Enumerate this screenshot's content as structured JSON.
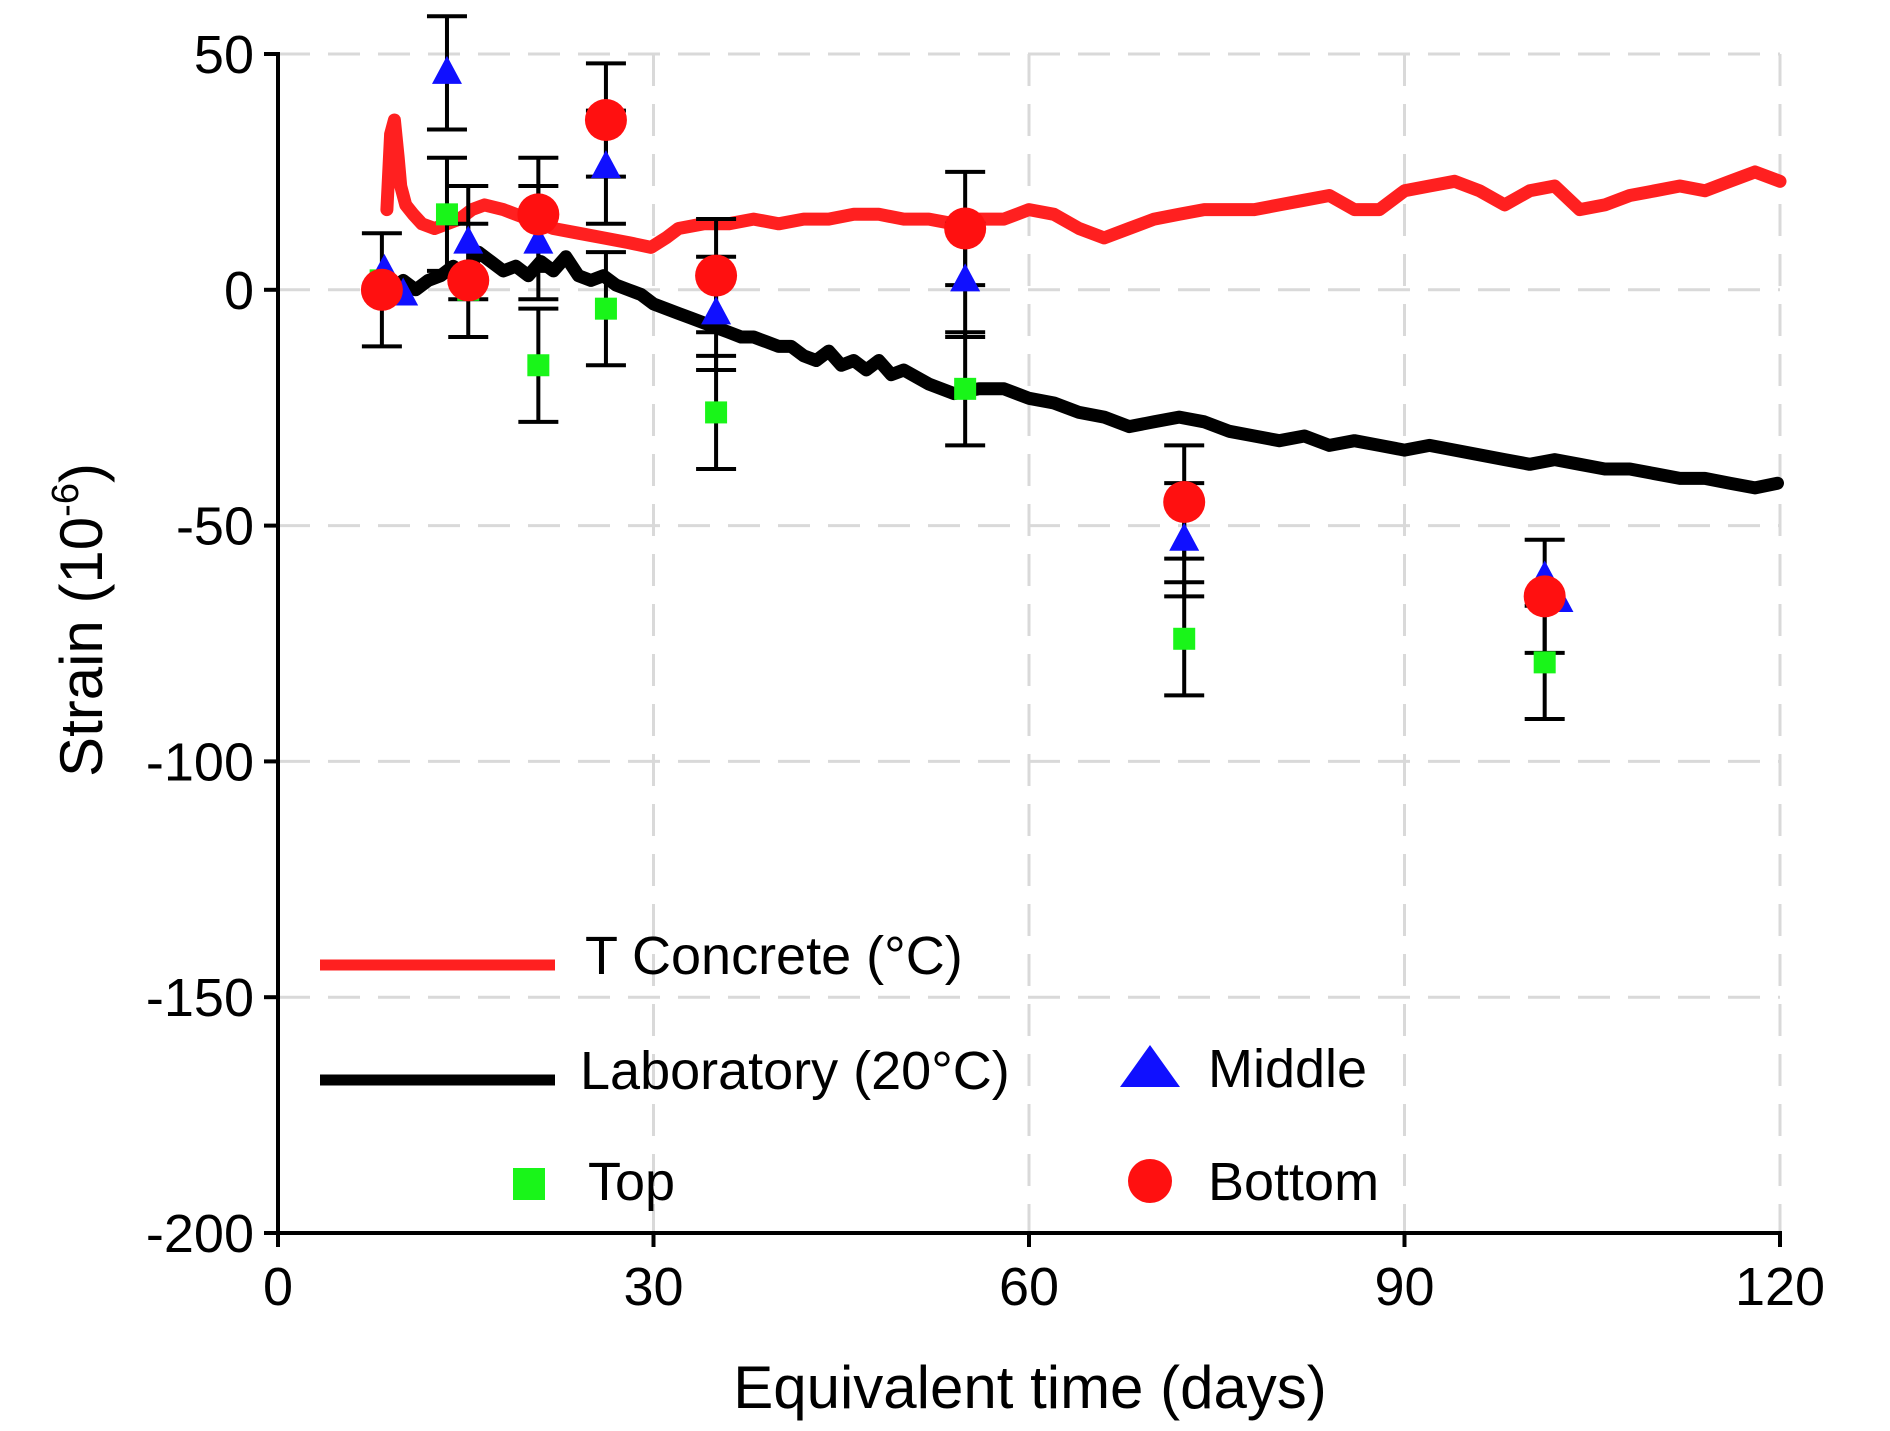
{
  "chart_data": {
    "type": "line",
    "xlabel": "Equivalent time (days)",
    "ylabel_main": "Strain (10",
    "ylabel_sup": "-6",
    "ylabel_close": ")",
    "xlim": [
      0,
      120
    ],
    "ylim": [
      -200,
      50
    ],
    "x_ticks": [
      0,
      30,
      60,
      90,
      120
    ],
    "y_ticks": [
      50,
      0,
      -50,
      -100,
      -150,
      -200
    ],
    "x_tick_labels": [
      "0",
      "30",
      "60",
      "90",
      "120"
    ],
    "y_tick_labels": [
      "50",
      "0",
      "-50",
      "-100",
      "-150",
      "-200"
    ],
    "grid": true,
    "series": [
      {
        "name": "T Concrete (°C)",
        "kind": "line",
        "color": "#ff2020",
        "x": [
          8.7,
          9.0,
          9.3,
          9.6,
          9.8,
          10.2,
          10.8,
          11.5,
          12.5,
          13.5,
          14.5,
          15.5,
          16.5,
          18,
          20,
          22,
          24,
          26,
          28,
          29.8,
          31,
          32,
          34,
          36,
          38,
          40,
          42,
          44,
          46,
          48,
          50,
          52,
          54,
          56,
          58,
          60,
          62,
          64,
          66,
          68,
          70,
          72,
          74,
          76,
          78,
          80,
          82,
          84,
          86,
          88,
          90,
          92,
          94,
          96,
          98,
          100,
          102,
          104,
          106,
          108,
          110,
          112,
          114,
          116,
          118,
          120
        ],
        "y": [
          17,
          33,
          36,
          28,
          22,
          18,
          16,
          14,
          13,
          14,
          15,
          17,
          18,
          17,
          15,
          13,
          12,
          11,
          10,
          9,
          11,
          13,
          14,
          14,
          15,
          14,
          15,
          15,
          16,
          16,
          15,
          15,
          14,
          15,
          15,
          17,
          16,
          13,
          11,
          13,
          15,
          16,
          17,
          17,
          17,
          18,
          19,
          20,
          17,
          17,
          21,
          22,
          23,
          21,
          18,
          21,
          22,
          17,
          18,
          20,
          21,
          22,
          21,
          23,
          25,
          23
        ]
      },
      {
        "name": "Laboratory (20°C)",
        "kind": "line",
        "color": "#000000",
        "x": [
          9.5,
          10,
          11,
          12,
          13,
          14,
          15,
          16,
          17,
          18,
          19,
          20,
          21,
          22,
          23,
          24,
          25,
          26,
          27,
          28,
          29,
          30,
          31,
          32,
          33,
          34,
          35,
          36,
          37,
          38,
          39,
          40,
          41,
          42,
          43,
          44,
          45,
          46,
          47,
          48,
          49,
          50,
          52,
          54,
          56,
          58,
          60,
          62,
          64,
          66,
          68,
          70,
          72,
          74,
          76,
          78,
          80,
          82,
          84,
          86,
          88,
          90,
          92,
          94,
          96,
          98,
          100,
          102,
          104,
          106,
          108,
          110,
          112,
          114,
          116,
          118,
          119.8
        ],
        "y": [
          1,
          2,
          0,
          2,
          3,
          5,
          3,
          8,
          6,
          4,
          5,
          3,
          6,
          4,
          7,
          3,
          2,
          3,
          1,
          0,
          -1,
          -3,
          -4,
          -5,
          -6,
          -7,
          -8,
          -9,
          -10,
          -10,
          -11,
          -12,
          -12,
          -14,
          -15,
          -13,
          -16,
          -15,
          -17,
          -15,
          -18,
          -17,
          -20,
          -22,
          -21,
          -21,
          -23,
          -24,
          -26,
          -27,
          -29,
          -28,
          -27,
          -28,
          -30,
          -31,
          -32,
          -31,
          -33,
          -32,
          -33,
          -34,
          -33,
          -34,
          -35,
          -36,
          -37,
          -36,
          -37,
          -38,
          -38,
          -39,
          -40,
          -40,
          -41,
          -42,
          -41
        ]
      },
      {
        "name": "Top",
        "kind": "points",
        "marker": "square",
        "color": "#19f519",
        "points": [
          {
            "x": 8.2,
            "y": 2,
            "err": 0
          },
          {
            "x": 13.5,
            "y": 16,
            "err": 12
          },
          {
            "x": 15.2,
            "y": 0,
            "err": 0
          },
          {
            "x": 20.8,
            "y": -16,
            "err": 12
          },
          {
            "x": 26.2,
            "y": -4,
            "err": 12
          },
          {
            "x": 35,
            "y": -26,
            "err": 12
          },
          {
            "x": 54.9,
            "y": -21,
            "err": 12
          },
          {
            "x": 72.4,
            "y": -74,
            "err": 12
          },
          {
            "x": 101.2,
            "y": -79,
            "err": 12
          }
        ]
      },
      {
        "name": "Middle",
        "kind": "points",
        "marker": "triangle",
        "color": "#1010ff",
        "points": [
          {
            "x": 8.5,
            "y": 4,
            "err": 0
          },
          {
            "x": 10,
            "y": -1,
            "err": 0
          },
          {
            "x": 13.5,
            "y": 46,
            "err": 12
          },
          {
            "x": 15.2,
            "y": 10,
            "err": 12
          },
          {
            "x": 20.8,
            "y": 10,
            "err": 12
          },
          {
            "x": 26.2,
            "y": 26,
            "err": 12
          },
          {
            "x": 35,
            "y": -5,
            "err": 12
          },
          {
            "x": 54.9,
            "y": 2,
            "err": 12
          },
          {
            "x": 72.4,
            "y": -53,
            "err": 12
          },
          {
            "x": 101.2,
            "y": -61,
            "err": 0
          },
          {
            "x": 102.3,
            "y": -66,
            "err": 0
          }
        ]
      },
      {
        "name": "Bottom",
        "kind": "points",
        "marker": "circle",
        "color": "#ff1010",
        "points": [
          {
            "x": 8.3,
            "y": 0,
            "err": 12
          },
          {
            "x": 15.2,
            "y": 2,
            "err": 12
          },
          {
            "x": 20.8,
            "y": 16,
            "err": 12
          },
          {
            "x": 26.2,
            "y": 36,
            "err": 12
          },
          {
            "x": 35,
            "y": 3,
            "err": 12
          },
          {
            "x": 54.9,
            "y": 13,
            "err": 12
          },
          {
            "x": 72.4,
            "y": -45,
            "err": 12
          },
          {
            "x": 101.2,
            "y": -65,
            "err": 12
          }
        ]
      }
    ],
    "legend": [
      {
        "label": "T Concrete (°C)",
        "symbol": "line",
        "color": "#ff2020"
      },
      {
        "label": "Laboratory (20°C)",
        "symbol": "line",
        "color": "#000000"
      },
      {
        "label": "Middle",
        "symbol": "triangle",
        "color": "#1010ff"
      },
      {
        "label": "Top",
        "symbol": "square",
        "color": "#19f519"
      },
      {
        "label": "Bottom",
        "symbol": "circle",
        "color": "#ff1010"
      }
    ]
  }
}
